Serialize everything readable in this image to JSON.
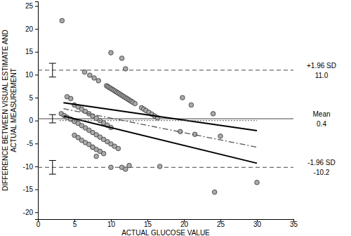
{
  "chart_data": {
    "type": "scatter",
    "x_label": "ACTUAL GLUCOSE VALUE",
    "y_label": [
      "DIFFERENCE BETWEEN VISUAL ESTIMATE AND",
      "ACTUAL MEASUREMENT"
    ],
    "xlim": [
      0,
      35
    ],
    "xticks": [
      0,
      5,
      10,
      15,
      20,
      25,
      30,
      35
    ],
    "ylim": [
      -21.5,
      26
    ],
    "yticks": [
      -20,
      -15,
      -10,
      -5,
      0,
      5,
      10,
      15,
      20,
      25
    ],
    "grid": false,
    "series": [
      {
        "type": "scatter",
        "marker": "circle",
        "color": "#a9a9a9",
        "x": [
          3.3,
          6.4,
          7.1,
          7.7,
          8.3,
          9.4,
          9.6,
          9.8,
          10.0,
          10.2,
          10.4,
          10.6,
          10.8,
          11.0,
          11.2,
          11.4,
          11.6,
          11.8,
          12.0,
          12.2,
          12.4,
          12.6,
          12.8,
          13.0,
          13.3,
          14.2,
          14.5,
          14.8,
          15.2,
          15.6,
          16.0,
          16.4,
          4.0,
          4.5,
          5.0,
          5.5,
          6.0,
          6.5,
          7.0,
          7.5,
          8.0,
          8.5,
          9.0,
          9.5,
          10.0,
          3.2,
          3.6,
          4.0,
          4.5,
          5.0,
          5.5,
          6.0,
          6.5,
          7.0,
          7.5,
          8.0,
          8.5,
          9.0,
          9.5,
          10.0,
          10.5,
          11.0,
          5.0,
          5.5,
          6.0,
          6.5,
          7.0,
          7.5,
          8.0,
          8.5,
          10.0,
          11.5,
          12.0,
          7.5,
          8.0,
          9.0,
          10.0,
          11.5,
          12.0,
          12.5,
          16.7,
          19.8,
          21.0,
          19.5,
          21.5,
          24.0,
          24.2,
          25.0,
          30.0
        ],
        "values": [
          21.8,
          10.6,
          9.9,
          9.3,
          8.7,
          7.6,
          7.4,
          7.2,
          7.0,
          6.8,
          6.6,
          6.4,
          6.2,
          6.0,
          5.8,
          5.6,
          5.4,
          5.2,
          5.0,
          4.8,
          4.6,
          4.4,
          4.2,
          4.0,
          3.7,
          2.8,
          2.5,
          2.2,
          1.8,
          1.4,
          1.0,
          0.6,
          5.2,
          4.8,
          3.4,
          3.0,
          2.5,
          2.0,
          1.5,
          1.0,
          0.5,
          0.0,
          -0.5,
          -1.0,
          -1.5,
          1.5,
          1.1,
          0.7,
          0.3,
          -0.2,
          -0.6,
          -1.1,
          -1.6,
          -2.1,
          -2.6,
          -3.1,
          -3.6,
          -4.1,
          -4.6,
          -5.1,
          -5.6,
          -6.1,
          -3.2,
          -3.7,
          -4.3,
          -4.8,
          -5.2,
          -5.8,
          -6.3,
          -6.7,
          14.8,
          13.6,
          11.3,
          -5.8,
          -7.8,
          -7.2,
          -10.2,
          -10.2,
          -10.6,
          -9.8,
          -10.0,
          5.0,
          3.4,
          -2.4,
          -3.0,
          1.5,
          -15.6,
          -3.4,
          -13.5
        ]
      },
      {
        "type": "line",
        "line_style": "solid",
        "color": "#000000",
        "x": [
          3.5,
          30
        ],
        "values": [
          3.9,
          -2.2
        ]
      },
      {
        "type": "line",
        "line_style": "solid",
        "color": "#000000",
        "x": [
          3.5,
          30
        ],
        "values": [
          1.0,
          -9.3
        ]
      },
      {
        "type": "line",
        "line_style": "dashdot",
        "color": "#555555",
        "x": [
          3.5,
          30
        ],
        "values": [
          2.6,
          -5.8
        ]
      },
      {
        "type": "line",
        "line_style": "dotted",
        "color": "#555555",
        "x": [
          3,
          30
        ],
        "values": [
          0,
          0
        ]
      }
    ],
    "reference_lines": [
      {
        "value": 11.0,
        "label": "+1.96 SD",
        "value_label": "11.0",
        "line_style": "dashed"
      },
      {
        "value": 0.4,
        "label": "Mean",
        "value_label": "0.4",
        "line_style": "solid"
      },
      {
        "value": -10.2,
        "label": "-1.96 SD",
        "value_label": "-10.2",
        "line_style": "dashed"
      }
    ],
    "confidence_intervals": {
      "x": [
        2,
        2,
        2
      ],
      "values": [
        11.0,
        0.4,
        -10.2
      ],
      "error": [
        1.5,
        0.9,
        1.5
      ]
    }
  }
}
